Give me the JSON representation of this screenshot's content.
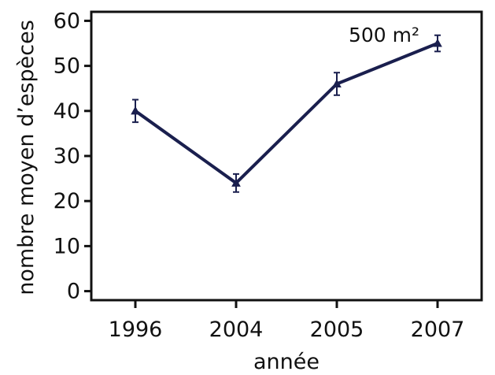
{
  "chart_data": {
    "type": "line",
    "categories": [
      "1996",
      "2004",
      "2005",
      "2007"
    ],
    "series": [
      {
        "values": [
          40,
          24,
          46,
          55
        ],
        "error": [
          2.5,
          2,
          2.5,
          1.8
        ],
        "color": "#1a1f4e"
      }
    ],
    "xlabel": "année",
    "ylabel": "nombre moyen d’espèces",
    "ylim": [
      -2,
      62
    ],
    "yticks": [
      0,
      10,
      20,
      30,
      40,
      50,
      60
    ],
    "annotation": "500 m²",
    "grid": false,
    "marker": "triangle"
  }
}
